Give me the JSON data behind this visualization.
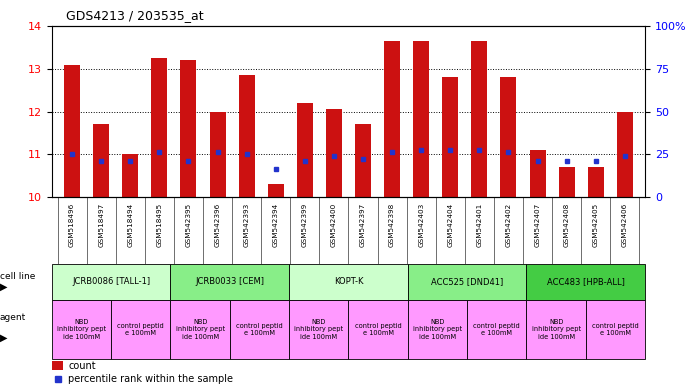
{
  "title": "GDS4213 / 203535_at",
  "samples": [
    "GSM518496",
    "GSM518497",
    "GSM518494",
    "GSM518495",
    "GSM542395",
    "GSM542396",
    "GSM542393",
    "GSM542394",
    "GSM542399",
    "GSM542400",
    "GSM542397",
    "GSM542398",
    "GSM542403",
    "GSM542404",
    "GSM542401",
    "GSM542402",
    "GSM542407",
    "GSM542408",
    "GSM542405",
    "GSM542406"
  ],
  "red_values": [
    13.1,
    11.7,
    11.0,
    13.25,
    13.2,
    12.0,
    12.85,
    10.3,
    12.2,
    12.05,
    11.7,
    13.65,
    13.65,
    12.8,
    13.65,
    12.8,
    11.1,
    10.7,
    10.7,
    12.0
  ],
  "blue_values": [
    11.0,
    10.85,
    10.85,
    11.05,
    10.85,
    11.05,
    11.0,
    10.65,
    10.85,
    10.95,
    10.9,
    11.05,
    11.1,
    11.1,
    11.1,
    11.05,
    10.85,
    10.85,
    10.85,
    10.95
  ],
  "cell_lines": [
    {
      "label": "JCRB0086 [TALL-1]",
      "start": 0,
      "end": 4,
      "color": "#ccffcc"
    },
    {
      "label": "JCRB0033 [CEM]",
      "start": 4,
      "end": 8,
      "color": "#88ee88"
    },
    {
      "label": "KOPT-K",
      "start": 8,
      "end": 12,
      "color": "#ccffcc"
    },
    {
      "label": "ACC525 [DND41]",
      "start": 12,
      "end": 16,
      "color": "#88ee88"
    },
    {
      "label": "ACC483 [HPB-ALL]",
      "start": 16,
      "end": 20,
      "color": "#44cc44"
    }
  ],
  "agents": [
    {
      "label": "NBD\ninhibitory pept\nide 100mM",
      "start": 0,
      "end": 2
    },
    {
      "label": "control peptid\ne 100mM",
      "start": 2,
      "end": 4
    },
    {
      "label": "NBD\ninhibitory pept\nide 100mM",
      "start": 4,
      "end": 6
    },
    {
      "label": "control peptid\ne 100mM",
      "start": 6,
      "end": 8
    },
    {
      "label": "NBD\ninhibitory pept\nide 100mM",
      "start": 8,
      "end": 10
    },
    {
      "label": "control peptid\ne 100mM",
      "start": 10,
      "end": 12
    },
    {
      "label": "NBD\ninhibitory pept\nide 100mM",
      "start": 12,
      "end": 14
    },
    {
      "label": "control peptid\ne 100mM",
      "start": 14,
      "end": 16
    },
    {
      "label": "NBD\ninhibitory pept\nide 100mM",
      "start": 16,
      "end": 18
    },
    {
      "label": "control peptid\ne 100mM",
      "start": 18,
      "end": 20
    }
  ],
  "agent_color": "#ff99ff",
  "ylim_left": [
    10,
    14
  ],
  "ylim_right": [
    0,
    100
  ],
  "yticks_left": [
    10,
    11,
    12,
    13,
    14
  ],
  "yticks_right": [
    0,
    25,
    50,
    75,
    100
  ],
  "ytick_labels_right": [
    "0",
    "25",
    "50",
    "75",
    "100%"
  ],
  "red_color": "#cc1111",
  "blue_color": "#2233cc",
  "bar_width": 0.55,
  "grid_color": "#000000"
}
